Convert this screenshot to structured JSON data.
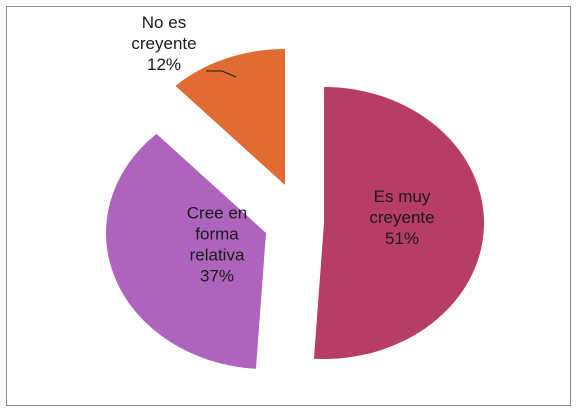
{
  "chart_data": {
    "type": "pie",
    "title": "",
    "legend": "none",
    "exploded": true,
    "slices": [
      {
        "label_lines": [
          "Es muy",
          "creyente",
          "51%"
        ],
        "value": 51,
        "color": "#b83d66"
      },
      {
        "label_lines": [
          "Cree en",
          "forma",
          "relativa",
          "37%"
        ],
        "value": 37,
        "color": "#ad64bd"
      },
      {
        "label_lines": [
          "No es",
          "creyente",
          "12%"
        ],
        "value": 12,
        "color": "#e06b33"
      }
    ]
  }
}
